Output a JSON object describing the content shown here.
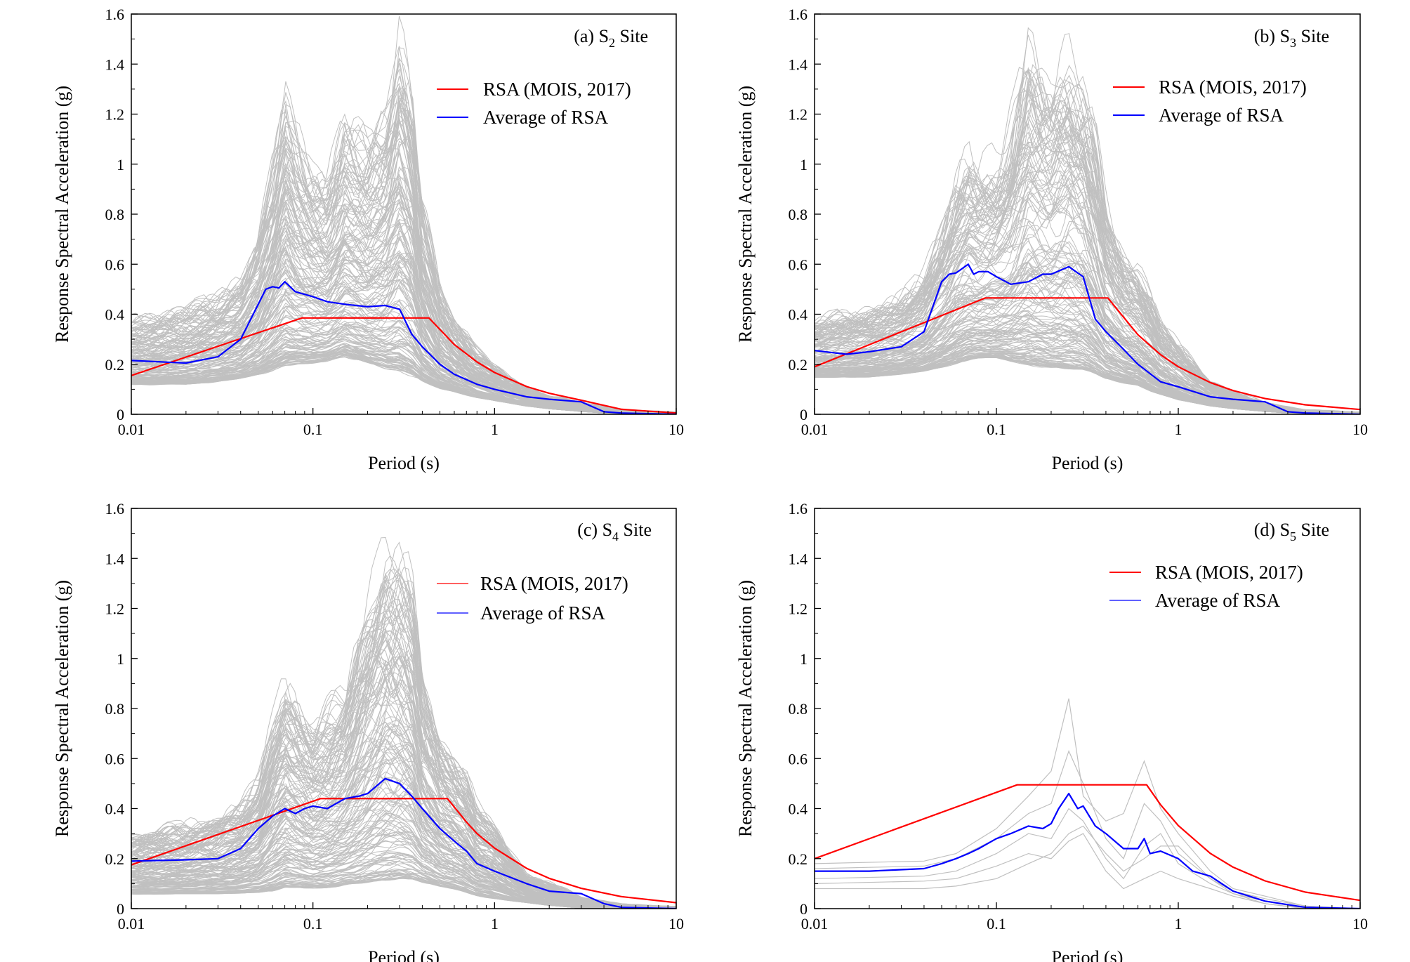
{
  "figure": {
    "colors": {
      "rsa_code": "#ff0000",
      "average": "#0000ff",
      "records": "#c0c0c0"
    }
  },
  "chart_data": [
    {
      "type": "line",
      "title": "(a) S2 Site",
      "title_main": "(a) S",
      "title_sub": "2",
      "title_tail": " Site",
      "xlabel": "Period (s)",
      "ylabel": "Response Spectral Acceleration (g)",
      "xscale": "log",
      "xlim": [
        0.01,
        10
      ],
      "ylim": [
        0,
        1.6
      ],
      "xticks": [
        0.01,
        0.1,
        1,
        10
      ],
      "xtick_labels": [
        "0.01",
        "0.1",
        "1",
        "10"
      ],
      "yticks": [
        0,
        0.2,
        0.4,
        0.6,
        0.8,
        1,
        1.2,
        1.4,
        1.6
      ],
      "ytick_labels": [
        "0",
        "0.2",
        "0.4",
        "0.6",
        "0.8",
        "1",
        "1.2",
        "1.4",
        "1.6"
      ],
      "legend": [
        "RSA (MOIS, 2017)",
        "Average of RSA"
      ],
      "record_envelope": {
        "x": [
          0.01,
          0.02,
          0.03,
          0.04,
          0.05,
          0.06,
          0.07,
          0.08,
          0.1,
          0.12,
          0.15,
          0.2,
          0.25,
          0.3,
          0.35,
          0.4,
          0.5,
          0.6,
          0.8,
          1,
          1.5,
          2,
          3,
          5,
          10
        ],
        "upper": [
          0.4,
          0.45,
          0.5,
          0.58,
          0.75,
          1.05,
          1.35,
          1.2,
          1.05,
          1.0,
          1.25,
          1.15,
          1.3,
          1.6,
          1.4,
          0.9,
          0.55,
          0.42,
          0.28,
          0.2,
          0.12,
          0.08,
          0.05,
          0.02,
          0.01
        ],
        "lower": [
          0.11,
          0.11,
          0.12,
          0.13,
          0.14,
          0.15,
          0.16,
          0.17,
          0.18,
          0.19,
          0.2,
          0.18,
          0.15,
          0.13,
          0.12,
          0.11,
          0.09,
          0.08,
          0.06,
          0.05,
          0.03,
          0.02,
          0.01,
          0.0,
          0.0
        ]
      },
      "series": [
        {
          "name": "RSA (MOIS, 2017)",
          "x": [
            0.01,
            0.087,
            0.435,
            0.6,
            0.8,
            1,
            1.5,
            2,
            3,
            5,
            10
          ],
          "y": [
            0.155,
            0.385,
            0.385,
            0.279,
            0.209,
            0.167,
            0.111,
            0.084,
            0.056,
            0.02,
            0.005
          ]
        },
        {
          "name": "Average of RSA",
          "x": [
            0.01,
            0.02,
            0.03,
            0.04,
            0.05,
            0.055,
            0.06,
            0.065,
            0.07,
            0.08,
            0.1,
            0.12,
            0.15,
            0.2,
            0.25,
            0.3,
            0.35,
            0.4,
            0.5,
            0.6,
            0.8,
            1,
            1.5,
            2,
            3,
            4,
            5,
            10
          ],
          "y": [
            0.215,
            0.205,
            0.23,
            0.3,
            0.44,
            0.5,
            0.51,
            0.505,
            0.53,
            0.49,
            0.47,
            0.45,
            0.44,
            0.43,
            0.435,
            0.42,
            0.32,
            0.27,
            0.2,
            0.16,
            0.12,
            0.1,
            0.07,
            0.06,
            0.05,
            0.01,
            0.005,
            0.0
          ]
        }
      ]
    },
    {
      "type": "line",
      "title": "(b) S3 Site",
      "title_main": "(b) S",
      "title_sub": "3",
      "title_tail": " Site",
      "xlabel": "Period (s)",
      "ylabel": "Response Spectral Acceleration (g)",
      "xscale": "log",
      "xlim": [
        0.01,
        10
      ],
      "ylim": [
        0,
        1.6
      ],
      "xticks": [
        0.01,
        0.1,
        1,
        10
      ],
      "xtick_labels": [
        "0.01",
        "0.1",
        "1",
        "10"
      ],
      "yticks": [
        0,
        0.2,
        0.4,
        0.6,
        0.8,
        1,
        1.2,
        1.4,
        1.6
      ],
      "ytick_labels": [
        "0",
        "0.2",
        "0.4",
        "0.6",
        "0.8",
        "1",
        "1.2",
        "1.4",
        "1.6"
      ],
      "legend": [
        "RSA (MOIS, 2017)",
        "Average of RSA"
      ],
      "record_envelope": {
        "x": [
          0.01,
          0.02,
          0.03,
          0.04,
          0.05,
          0.06,
          0.07,
          0.08,
          0.1,
          0.12,
          0.15,
          0.2,
          0.25,
          0.3,
          0.35,
          0.4,
          0.5,
          0.6,
          0.7,
          0.8,
          1,
          1.5,
          2,
          3,
          5,
          10
        ],
        "upper": [
          0.4,
          0.45,
          0.5,
          0.6,
          0.8,
          1.0,
          1.1,
          1.05,
          1.1,
          1.25,
          1.55,
          1.45,
          1.57,
          1.45,
          1.2,
          0.9,
          0.7,
          0.65,
          0.55,
          0.4,
          0.3,
          0.15,
          0.1,
          0.05,
          0.02,
          0.01
        ],
        "lower": [
          0.14,
          0.14,
          0.15,
          0.16,
          0.17,
          0.18,
          0.19,
          0.2,
          0.2,
          0.18,
          0.16,
          0.15,
          0.14,
          0.14,
          0.13,
          0.12,
          0.11,
          0.1,
          0.08,
          0.07,
          0.05,
          0.03,
          0.02,
          0.01,
          0.0,
          0.0
        ]
      },
      "series": [
        {
          "name": "RSA (MOIS, 2017)",
          "x": [
            0.01,
            0.087,
            0.41,
            0.6,
            0.8,
            1,
            1.5,
            2,
            3,
            5,
            10
          ],
          "y": [
            0.19,
            0.465,
            0.465,
            0.318,
            0.238,
            0.19,
            0.127,
            0.095,
            0.063,
            0.038,
            0.019
          ]
        },
        {
          "name": "Average of RSA",
          "x": [
            0.01,
            0.015,
            0.02,
            0.03,
            0.04,
            0.05,
            0.055,
            0.06,
            0.07,
            0.075,
            0.08,
            0.09,
            0.1,
            0.12,
            0.15,
            0.18,
            0.2,
            0.25,
            0.3,
            0.35,
            0.4,
            0.5,
            0.6,
            0.8,
            1,
            1.5,
            2,
            3,
            4,
            5,
            10
          ],
          "y": [
            0.255,
            0.24,
            0.25,
            0.27,
            0.33,
            0.53,
            0.56,
            0.565,
            0.6,
            0.56,
            0.57,
            0.57,
            0.55,
            0.52,
            0.53,
            0.56,
            0.56,
            0.59,
            0.55,
            0.38,
            0.33,
            0.26,
            0.2,
            0.13,
            0.11,
            0.07,
            0.06,
            0.05,
            0.01,
            0.005,
            0.0
          ]
        }
      ]
    },
    {
      "type": "line",
      "title": "(c) S4 Site",
      "title_main": "(c) S",
      "title_sub": "4",
      "title_tail": " Site",
      "xlabel": "Period (s)",
      "ylabel": "Response Spectral Acceleration (g)",
      "xscale": "log",
      "xlim": [
        0.01,
        10
      ],
      "ylim": [
        0,
        1.6
      ],
      "xticks": [
        0.01,
        0.1,
        1,
        10
      ],
      "xtick_labels": [
        "0.01",
        "0.1",
        "1",
        "10"
      ],
      "yticks": [
        0,
        0.2,
        0.4,
        0.6,
        0.8,
        1,
        1.2,
        1.4,
        1.6
      ],
      "ytick_labels": [
        "0",
        "0.2",
        "0.4",
        "0.6",
        "0.8",
        "1",
        "1.2",
        "1.4",
        "1.6"
      ],
      "legend": [
        "RSA (MOIS, 2017)",
        "Average of RSA"
      ],
      "record_envelope": {
        "x": [
          0.01,
          0.02,
          0.03,
          0.04,
          0.05,
          0.06,
          0.07,
          0.08,
          0.1,
          0.12,
          0.15,
          0.2,
          0.25,
          0.3,
          0.35,
          0.4,
          0.5,
          0.6,
          0.7,
          0.8,
          1,
          1.5,
          2,
          3,
          5,
          10
        ],
        "upper": [
          0.32,
          0.36,
          0.4,
          0.45,
          0.55,
          0.8,
          0.97,
          0.9,
          0.8,
          0.85,
          0.95,
          1.3,
          1.55,
          1.52,
          1.4,
          1.0,
          0.75,
          0.68,
          0.6,
          0.45,
          0.35,
          0.15,
          0.12,
          0.05,
          0.02,
          0.01
        ],
        "lower": [
          0.05,
          0.05,
          0.05,
          0.05,
          0.05,
          0.05,
          0.06,
          0.06,
          0.06,
          0.06,
          0.07,
          0.07,
          0.07,
          0.08,
          0.08,
          0.08,
          0.07,
          0.06,
          0.05,
          0.04,
          0.03,
          0.02,
          0.01,
          0.0,
          0.0,
          0.0
        ]
      },
      "series": [
        {
          "name": "RSA (MOIS, 2017)",
          "x": [
            0.01,
            0.11,
            0.55,
            0.7,
            0.8,
            1,
            1.5,
            2,
            3,
            5,
            10
          ],
          "y": [
            0.175,
            0.44,
            0.44,
            0.346,
            0.3,
            0.242,
            0.161,
            0.121,
            0.081,
            0.048,
            0.024
          ]
        },
        {
          "name": "Average of RSA",
          "x": [
            0.01,
            0.02,
            0.03,
            0.04,
            0.05,
            0.06,
            0.07,
            0.08,
            0.09,
            0.1,
            0.12,
            0.15,
            0.18,
            0.2,
            0.25,
            0.3,
            0.35,
            0.4,
            0.5,
            0.6,
            0.7,
            0.8,
            1,
            1.5,
            2,
            3,
            4,
            5,
            10
          ],
          "y": [
            0.19,
            0.195,
            0.2,
            0.24,
            0.32,
            0.37,
            0.4,
            0.38,
            0.4,
            0.41,
            0.4,
            0.44,
            0.45,
            0.46,
            0.52,
            0.5,
            0.45,
            0.4,
            0.32,
            0.27,
            0.23,
            0.18,
            0.15,
            0.1,
            0.07,
            0.06,
            0.02,
            0.005,
            0.0
          ]
        }
      ]
    },
    {
      "type": "line",
      "title": "(d) S5 Site",
      "title_main": "(d) S",
      "title_sub": "5",
      "title_tail": " Site",
      "xlabel": "Period (s)",
      "ylabel": "Response Spectral Acceleration (g)",
      "xscale": "log",
      "xlim": [
        0.01,
        10
      ],
      "ylim": [
        0,
        1.6
      ],
      "xticks": [
        0.01,
        0.1,
        1,
        10
      ],
      "xtick_labels": [
        "0.01",
        "0.1",
        "1",
        "10"
      ],
      "yticks": [
        0,
        0.2,
        0.4,
        0.6,
        0.8,
        1,
        1.2,
        1.4,
        1.6
      ],
      "ytick_labels": [
        "0",
        "0.2",
        "0.4",
        "0.6",
        "0.8",
        "1",
        "1.2",
        "1.4",
        "1.6"
      ],
      "legend": [
        "RSA (MOIS, 2017)",
        "Average of RSA"
      ],
      "records": [
        {
          "x": [
            0.01,
            0.04,
            0.06,
            0.1,
            0.15,
            0.2,
            0.25,
            0.3,
            0.4,
            0.5,
            0.65,
            0.8,
            1,
            1.5,
            2,
            3,
            5,
            10
          ],
          "y": [
            0.18,
            0.19,
            0.22,
            0.32,
            0.45,
            0.55,
            0.84,
            0.45,
            0.35,
            0.38,
            0.59,
            0.4,
            0.3,
            0.15,
            0.08,
            0.05,
            0.01,
            0.0
          ]
        },
        {
          "x": [
            0.01,
            0.04,
            0.06,
            0.1,
            0.15,
            0.2,
            0.25,
            0.3,
            0.4,
            0.5,
            0.65,
            0.8,
            1,
            1.5,
            2,
            3,
            5,
            10
          ],
          "y": [
            0.16,
            0.17,
            0.2,
            0.28,
            0.38,
            0.42,
            0.63,
            0.5,
            0.28,
            0.2,
            0.42,
            0.35,
            0.22,
            0.12,
            0.07,
            0.04,
            0.01,
            0.0
          ]
        },
        {
          "x": [
            0.01,
            0.04,
            0.06,
            0.1,
            0.15,
            0.2,
            0.25,
            0.3,
            0.4,
            0.5,
            0.65,
            0.8,
            1,
            1.5,
            2,
            3,
            5,
            10
          ],
          "y": [
            0.12,
            0.13,
            0.15,
            0.22,
            0.3,
            0.28,
            0.4,
            0.35,
            0.2,
            0.12,
            0.25,
            0.3,
            0.18,
            0.1,
            0.06,
            0.03,
            0.0,
            0.0
          ]
        },
        {
          "x": [
            0.01,
            0.04,
            0.06,
            0.1,
            0.15,
            0.2,
            0.25,
            0.3,
            0.4,
            0.5,
            0.65,
            0.8,
            1,
            1.5,
            2,
            3,
            5,
            10
          ],
          "y": [
            0.1,
            0.11,
            0.12,
            0.17,
            0.22,
            0.2,
            0.27,
            0.3,
            0.15,
            0.08,
            0.12,
            0.15,
            0.12,
            0.08,
            0.05,
            0.02,
            0.0,
            0.0
          ]
        },
        {
          "x": [
            0.01,
            0.04,
            0.06,
            0.1,
            0.15,
            0.2,
            0.25,
            0.3,
            0.4,
            0.5,
            0.65,
            0.8,
            1,
            1.5,
            2,
            3,
            5,
            10
          ],
          "y": [
            0.08,
            0.08,
            0.09,
            0.12,
            0.18,
            0.22,
            0.3,
            0.33,
            0.22,
            0.15,
            0.2,
            0.25,
            0.25,
            0.12,
            0.06,
            0.02,
            0.0,
            0.0
          ]
        }
      ],
      "series": [
        {
          "name": "RSA (MOIS, 2017)",
          "x": [
            0.01,
            0.13,
            0.67,
            0.8,
            1,
            1.5,
            2,
            3,
            5,
            10
          ],
          "y": [
            0.2,
            0.495,
            0.495,
            0.415,
            0.332,
            0.221,
            0.166,
            0.111,
            0.066,
            0.033
          ]
        },
        {
          "name": "Average of RSA",
          "x": [
            0.01,
            0.02,
            0.04,
            0.05,
            0.06,
            0.07,
            0.08,
            0.1,
            0.12,
            0.15,
            0.18,
            0.2,
            0.22,
            0.25,
            0.28,
            0.3,
            0.35,
            0.4,
            0.5,
            0.6,
            0.65,
            0.7,
            0.8,
            1,
            1.2,
            1.5,
            2,
            3,
            5,
            10
          ],
          "y": [
            0.15,
            0.15,
            0.16,
            0.18,
            0.2,
            0.22,
            0.24,
            0.28,
            0.3,
            0.33,
            0.32,
            0.34,
            0.4,
            0.46,
            0.4,
            0.41,
            0.33,
            0.3,
            0.24,
            0.24,
            0.28,
            0.22,
            0.23,
            0.2,
            0.15,
            0.13,
            0.07,
            0.03,
            0.005,
            0.0
          ]
        }
      ]
    }
  ]
}
